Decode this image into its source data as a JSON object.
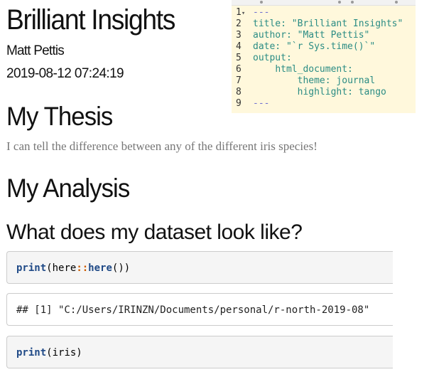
{
  "document": {
    "title": "Brilliant Insights",
    "author": "Matt Pettis",
    "date": "2019-08-12 07:24:19",
    "sections": [
      {
        "heading": "My Thesis",
        "text": "I can tell the difference between any of the different iris species!"
      },
      {
        "heading": "My Analysis",
        "subheading": "What does my dataset look like?"
      }
    ],
    "code_blocks": [
      {
        "fn": "print",
        "open": "(",
        "pkg": "here",
        "sep": "::",
        "fn2": "here",
        "close": "())"
      },
      {
        "output": "## [1] \"C:/Users/IRINZN/Documents/personal/r-north-2019-08\""
      },
      {
        "fn": "print",
        "arg": "(iris)"
      }
    ]
  },
  "editor": {
    "fold_marker": "▾",
    "lines": [
      {
        "num": "1",
        "text": "---"
      },
      {
        "num": "2",
        "key": "title:",
        "value": " \"Brilliant Insights\""
      },
      {
        "num": "3",
        "key": "author:",
        "value": " \"Matt Pettis\""
      },
      {
        "num": "4",
        "key": "date:",
        "value": " \"`r Sys.time()`\""
      },
      {
        "num": "5",
        "key": "output:",
        "value": ""
      },
      {
        "num": "6",
        "indent": "    ",
        "key": "html_document:",
        "value": ""
      },
      {
        "num": "7",
        "indent": "        ",
        "key": "theme:",
        "value": " journal"
      },
      {
        "num": "8",
        "indent": "        ",
        "key": "highlight:",
        "value": " tango"
      },
      {
        "num": "9",
        "text": "---"
      }
    ]
  }
}
